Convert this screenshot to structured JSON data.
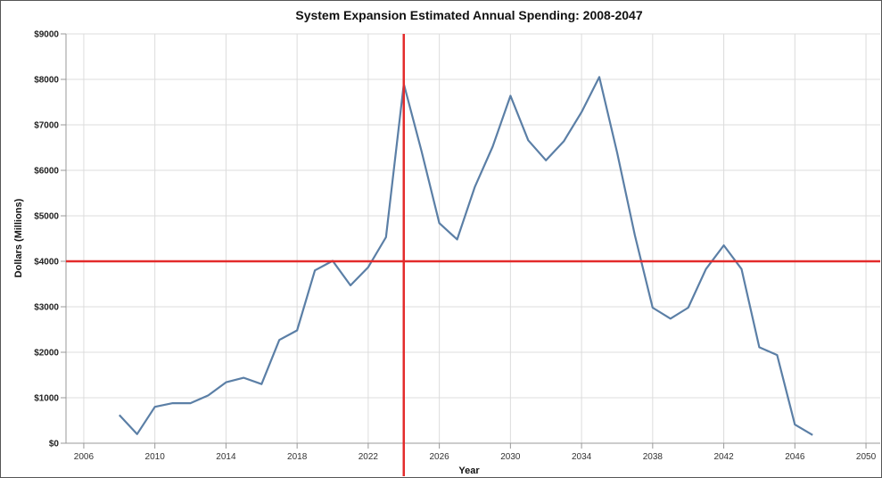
{
  "chart_data": {
    "type": "line",
    "title": "System Expansion Estimated Annual Spending: 2008-2047",
    "xlabel": "Year",
    "ylabel": "Dollars (Millions)",
    "xlim": [
      2005,
      2050.8
    ],
    "ylim": [
      0,
      9000
    ],
    "grid": true,
    "x_ticks": [
      "2006",
      "2010",
      "2014",
      "2018",
      "2022",
      "2026",
      "2030",
      "2034",
      "2038",
      "2042",
      "2046",
      "2050"
    ],
    "y_ticks": [
      "$0",
      "$1000",
      "$2000",
      "$3000",
      "$4000",
      "$5000",
      "$6000",
      "$7000",
      "$8000",
      "$9000"
    ],
    "series": [
      {
        "color": "#5b7fa6",
        "x": [
          2008,
          2009,
          2010,
          2011,
          2012,
          2013,
          2014,
          2015,
          2016,
          2017,
          2018,
          2019,
          2020,
          2021,
          2022,
          2023,
          2024,
          2025,
          2026,
          2027,
          2028,
          2029,
          2030,
          2031,
          2032,
          2033,
          2034,
          2035,
          2036,
          2037,
          2038,
          2039,
          2040,
          2041,
          2042,
          2043,
          2044,
          2045,
          2046,
          2047
        ],
        "values": [
          620,
          200,
          800,
          880,
          880,
          1050,
          1340,
          1440,
          1300,
          2270,
          2480,
          3800,
          4010,
          3470,
          3870,
          4530,
          7900,
          6420,
          4840,
          4480,
          5640,
          6520,
          7640,
          6660,
          6220,
          6640,
          7280,
          8050,
          6390,
          4570,
          2980,
          2740,
          2980,
          3830,
          4350,
          3830,
          2110,
          1940,
          410,
          180
        ]
      }
    ],
    "reference_lines": [
      {
        "orientation": "horizontal",
        "y": 4000,
        "color": "#e32b2b"
      },
      {
        "orientation": "vertical",
        "x": 2024,
        "color": "#e32b2b"
      }
    ]
  }
}
